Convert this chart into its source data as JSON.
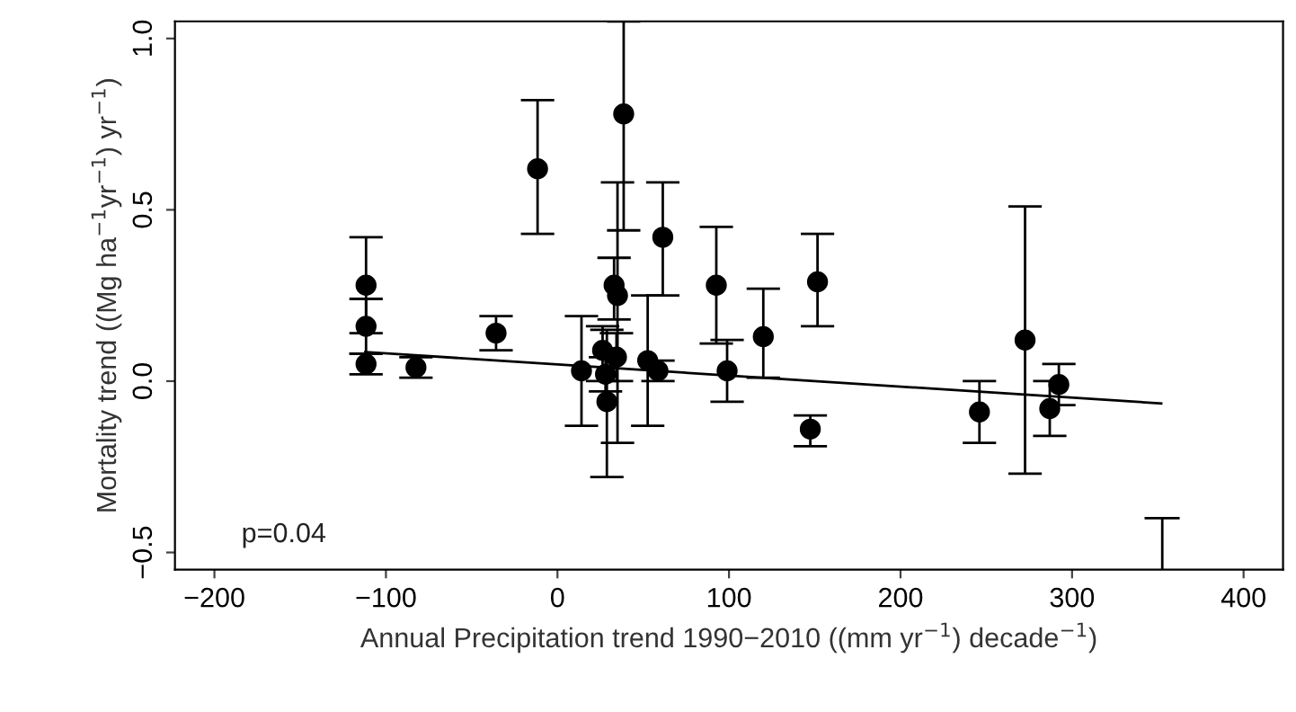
{
  "chart_data": {
    "type": "scatter",
    "xlabel": "Annual Precipitation trend 1990−2010 ((mm yr$^{−1}$) decade$^{−1}$)",
    "ylabel": "Mortality trend ((Mg ha$^{−1}$yr$^{−1}$) yr$^{−1}$)",
    "annotations": [
      "p=0.04"
    ],
    "xlim": [
      -223,
      423
    ],
    "ylim": [
      -0.55,
      1.05
    ],
    "xticks": [
      {
        "value": -200,
        "label": "−200"
      },
      {
        "value": -100,
        "label": "−100"
      },
      0,
      100,
      200,
      300,
      400
    ],
    "yticks": [
      {
        "value": -0.5,
        "label": "−0.5"
      },
      {
        "value": 0.0,
        "label": "0.0"
      },
      {
        "value": 0.5,
        "label": "0.5"
      },
      {
        "value": 1.0,
        "label": "1.0"
      }
    ],
    "series": [
      {
        "color": "#000000",
        "marker": "circle",
        "x": [
          -111.6,
          -111.6,
          -111.6,
          -82.5,
          -35.8,
          -11.6,
          38.6,
          14,
          26.3,
          28.8,
          33,
          35,
          34.4,
          28,
          52.6,
          58.6,
          61.4,
          92.6,
          98.9,
          120,
          151.6,
          147.4,
          246,
          272.6,
          292.3,
          287
        ],
        "values": [
          0.28,
          0.16,
          0.05,
          0.04,
          0.14,
          0.62,
          0.78,
          0.03,
          0.09,
          -0.06,
          0.28,
          0.25,
          0.07,
          0.02,
          0.06,
          0.03,
          0.42,
          0.28,
          0.03,
          0.13,
          0.29,
          -0.14,
          -0.09,
          0.12,
          -0.01,
          -0.08
        ],
        "errors": [
          [
            0.14,
            0.42
          ],
          [
            0.08,
            0.24
          ],
          [
            0.02,
            0.08
          ],
          [
            0.01,
            0.07
          ],
          [
            0.09,
            0.19
          ],
          [
            0.43,
            0.82
          ],
          [
            0.44,
            1.05
          ],
          [
            -0.13,
            0.19
          ],
          [
            0.0,
            0.16
          ],
          [
            -0.28,
            0.15
          ],
          [
            0.18,
            0.36
          ],
          [
            -0.18,
            0.58
          ],
          [
            0.0,
            0.14
          ],
          [
            -0.03,
            0.07
          ],
          [
            -0.13,
            0.25
          ],
          [
            0.0,
            0.06
          ],
          [
            0.25,
            0.58
          ],
          [
            0.11,
            0.45
          ],
          [
            -0.06,
            0.12
          ],
          [
            0.01,
            0.27
          ],
          [
            0.16,
            0.43
          ],
          [
            -0.19,
            -0.1
          ],
          [
            -0.18,
            0.0
          ],
          [
            -0.27,
            0.51
          ],
          [
            -0.07,
            0.05
          ],
          [
            -0.16,
            0.0
          ]
        ]
      },
      {
        "type": "line",
        "color": "#000000",
        "marker": "none",
        "x": [
          -112,
          352
        ],
        "values": [
          0.085,
          -0.065
        ]
      },
      {
        "type": "line",
        "color": "#000000",
        "marker": "none",
        "x": [
          352.6,
          352.6
        ],
        "values": [
          -0.55,
          -0.4
        ]
      },
      {
        "type": "line",
        "color": "#000000",
        "marker": "none",
        "x": [
          343,
          362
        ],
        "values": [
          -0.4,
          -0.4
        ]
      }
    ]
  }
}
